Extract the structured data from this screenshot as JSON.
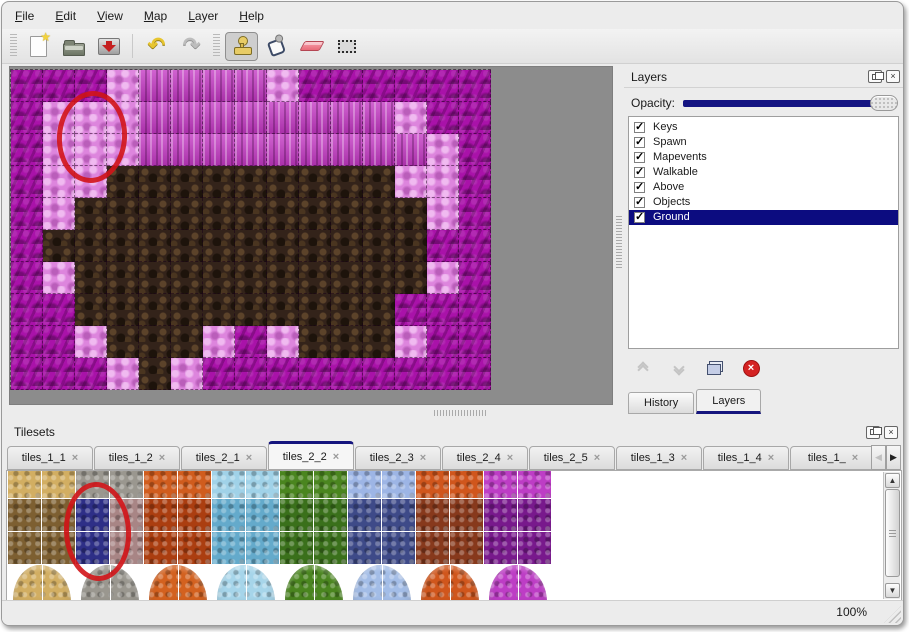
{
  "colors": {
    "accent_navy": "#15157e",
    "selection_navy": "#0c0c80",
    "annotation_red": "#d11418",
    "map_background_gray": "#8c8c8c"
  },
  "icons": {
    "close_glyph": "×",
    "check_glyph": "✓",
    "up_arrow": "▲",
    "down_arrow": "▼",
    "left_arrow": "◀",
    "right_arrow": "▶",
    "undo_glyph": "↶",
    "redo_glyph": "↷",
    "delete_glyph": "×"
  },
  "menu": {
    "items": [
      {
        "label": "File"
      },
      {
        "label": "Edit"
      },
      {
        "label": "View"
      },
      {
        "label": "Map"
      },
      {
        "label": "Layer"
      },
      {
        "label": "Help"
      }
    ]
  },
  "toolbar": {
    "groups": [
      [
        "new-file",
        "open-file",
        "save-file"
      ],
      [
        "undo",
        "redo"
      ],
      [
        "stamp-tool",
        "fill-tool",
        "eraser-tool",
        "select-tool"
      ]
    ],
    "active_tool": "stamp-tool"
  },
  "map_view": {
    "tile_size": 32,
    "columns": 15,
    "rows": 10,
    "legend": {
      "M": "magenta-scales",
      "P": "magenta-pillars",
      "L": "pink-fluff",
      "B": "brown-rock"
    },
    "tile_colors": {
      "M": "#a912a9",
      "P": "#c437c4",
      "L": "#dd85dd",
      "B": "#33231a"
    },
    "grid": [
      "MMMLPPPPLMMMMMM",
      "MLLLPPPPPPPPLMM",
      "MLLLPPPPPPPPPLM",
      "MLLBBBBBBBBBLLM",
      "MLBBBBBBBBBBBLM",
      "MBBBBBBBBBBBBMM",
      "MLBBBBBBBBBBBLM",
      "MMBBBBBBBBBBMMM",
      "MMLBBBLMLBBBLMM",
      "MMMLBLMMMMMMMMM"
    ],
    "annotation": {
      "type": "red-ellipse",
      "color": "#d11418"
    }
  },
  "layers_panel": {
    "title": "Layers",
    "opacity_label": "Opacity:",
    "opacity_slider_position": "max",
    "items": [
      {
        "label": "Keys",
        "checked": true,
        "selected": false
      },
      {
        "label": "Spawn",
        "checked": true,
        "selected": false
      },
      {
        "label": "Mapevents",
        "checked": true,
        "selected": false
      },
      {
        "label": "Walkable",
        "checked": true,
        "selected": false
      },
      {
        "label": "Above",
        "checked": true,
        "selected": false
      },
      {
        "label": "Objects",
        "checked": true,
        "selected": false
      },
      {
        "label": "Ground",
        "checked": true,
        "selected": true
      }
    ],
    "buttons": [
      {
        "icon": "raise-layer-icon",
        "enabled": false
      },
      {
        "icon": "lower-layer-icon",
        "enabled": false
      },
      {
        "icon": "duplicate-layer-icon",
        "enabled": true
      },
      {
        "icon": "delete-layer-icon",
        "enabled": true
      }
    ],
    "tabs": [
      {
        "label": "History",
        "active": false
      },
      {
        "label": "Layers",
        "active": true
      }
    ]
  },
  "tilesets_panel": {
    "title": "Tilesets",
    "tabs": [
      {
        "label": "tiles_1_1",
        "active": false
      },
      {
        "label": "tiles_1_2",
        "active": false
      },
      {
        "label": "tiles_2_1",
        "active": false
      },
      {
        "label": "tiles_2_2",
        "active": true
      },
      {
        "label": "tiles_2_3",
        "active": false
      },
      {
        "label": "tiles_2_4",
        "active": false
      },
      {
        "label": "tiles_2_5",
        "active": false
      },
      {
        "label": "tiles_1_3",
        "active": false
      },
      {
        "label": "tiles_1_4",
        "active": false
      },
      {
        "label": "tiles_1_",
        "active": false
      }
    ],
    "groups": [
      {
        "name": "wheat",
        "top": "#d2ae62",
        "mid": "#7d5f31",
        "blob": "#d2ae62"
      },
      {
        "name": "stone",
        "top": "#9a978f",
        "mid": "#a88585",
        "blob": "#9a978f"
      },
      {
        "name": "lava",
        "top": "#d05c1d",
        "mid": "#ab3e10",
        "blob": "#d3611f"
      },
      {
        "name": "water",
        "top": "#a0d2e8",
        "mid": "#64aacb",
        "blob": "#a6d5ea"
      },
      {
        "name": "vines",
        "top": "#4a851f",
        "mid": "#3a701b",
        "blob": "#4a851f"
      },
      {
        "name": "crystal",
        "top": "#9db5e5",
        "mid": "#3e4a88",
        "blob": "#a3bde7"
      },
      {
        "name": "rust",
        "top": "#d0561c",
        "mid": "#87391c",
        "blob": "#d0561c"
      },
      {
        "name": "coral",
        "top": "#bd3dc5",
        "mid": "#78198c",
        "blob": "#bd3dc5"
      }
    ],
    "visible_rows": 3,
    "selection": {
      "cells": [
        [
          2,
          1
        ],
        [
          2,
          2
        ]
      ],
      "color": "#2e2f87"
    },
    "annotation": {
      "type": "red-ellipse",
      "color": "#d11418"
    }
  },
  "status_bar": {
    "zoom": "100%"
  }
}
